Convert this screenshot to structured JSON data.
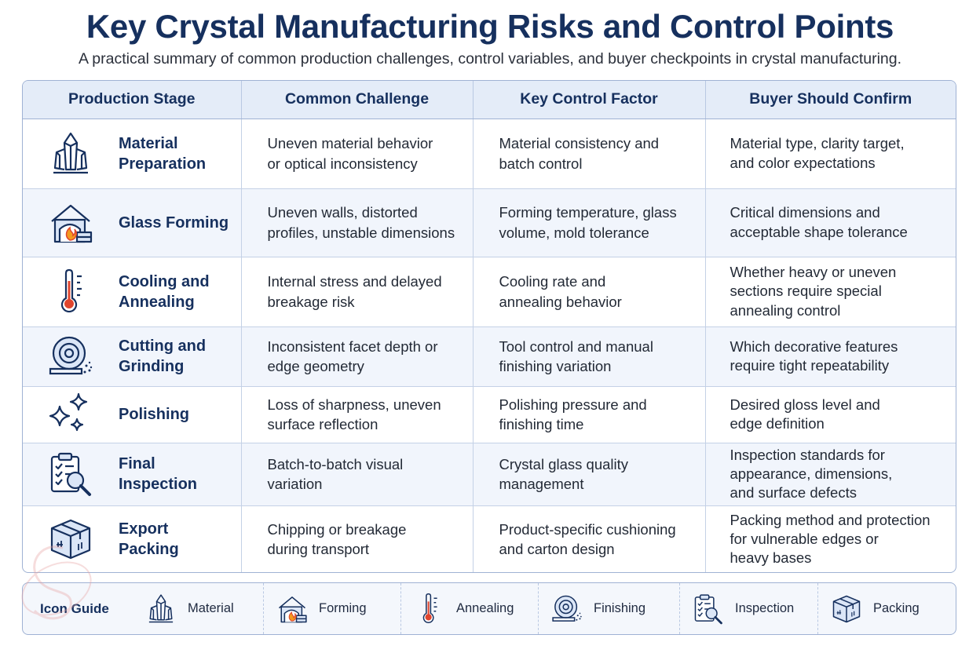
{
  "title": "Key Crystal Manufacturing Risks and Control Points",
  "subtitle": "A practical summary of common production challenges, control variables, and buyer checkpoints in crystal manufacturing.",
  "table": {
    "headers": [
      "Production Stage",
      "Common Challenge",
      "Key Control Factor",
      "Buyer Should Confirm"
    ],
    "rows": [
      {
        "icon": "crystal-icon",
        "stage": [
          "Material",
          "Preparation"
        ],
        "challenge": [
          "Uneven material behavior",
          "or optical inconsistency"
        ],
        "control": [
          "Material consistency and",
          "batch control"
        ],
        "confirm": [
          "Material type, clarity target,",
          "and color expectations"
        ]
      },
      {
        "icon": "furnace-icon",
        "stage": [
          "Glass Forming"
        ],
        "challenge": [
          "Uneven walls, distorted",
          "profiles, unstable dimensions"
        ],
        "control": [
          "Forming temperature, glass",
          "volume, mold tolerance"
        ],
        "confirm": [
          "Critical dimensions and",
          "acceptable shape tolerance"
        ]
      },
      {
        "icon": "thermometer-icon",
        "stage": [
          "Cooling and",
          "Annealing"
        ],
        "challenge": [
          "Internal stress and delayed",
          "breakage risk"
        ],
        "control": [
          "Cooling rate and",
          "annealing behavior"
        ],
        "confirm": [
          "Whether heavy or uneven",
          "sections require special",
          "annealing control"
        ]
      },
      {
        "icon": "grinding-wheel-icon",
        "stage": [
          "Cutting and",
          "Grinding"
        ],
        "challenge": [
          "Inconsistent facet depth or",
          "edge geometry"
        ],
        "control": [
          "Tool control and manual",
          "finishing variation"
        ],
        "confirm": [
          "Which decorative features",
          "require tight repeatability"
        ]
      },
      {
        "icon": "sparkle-icon",
        "stage": [
          "Polishing"
        ],
        "challenge": [
          "Loss of sharpness, uneven",
          "surface reflection"
        ],
        "control": [
          "Polishing pressure and",
          "finishing time"
        ],
        "confirm": [
          "Desired gloss level and",
          "edge definition"
        ]
      },
      {
        "icon": "clipboard-magnifier-icon",
        "stage": [
          "Final",
          "Inspection"
        ],
        "challenge": [
          "Batch-to-batch visual",
          "variation"
        ],
        "control": [
          "Crystal glass quality",
          "management"
        ],
        "confirm": [
          "Inspection standards for",
          "appearance, dimensions,",
          "and surface defects"
        ]
      },
      {
        "icon": "box-icon",
        "stage": [
          "Export",
          "Packing"
        ],
        "challenge": [
          "Chipping or breakage",
          "during transport"
        ],
        "control": [
          "Product-specific cushioning",
          "and carton design"
        ],
        "confirm": [
          "Packing method and protection",
          "for vulnerable edges or",
          "heavy bases"
        ]
      }
    ]
  },
  "icon_guide": {
    "title": "Icon Guide",
    "items": [
      {
        "icon": "crystal-icon",
        "label": "Material"
      },
      {
        "icon": "furnace-icon",
        "label": "Forming"
      },
      {
        "icon": "thermometer-icon",
        "label": "Annealing"
      },
      {
        "icon": "grinding-wheel-icon",
        "label": "Finishing"
      },
      {
        "icon": "clipboard-magnifier-icon",
        "label": "Inspection"
      },
      {
        "icon": "box-icon",
        "label": "Packing"
      }
    ]
  },
  "colors": {
    "navy": "#16305e",
    "header_bg": "#e4ecf8",
    "accent_red": "#e0452e",
    "accent_orange": "#f39a1e"
  }
}
